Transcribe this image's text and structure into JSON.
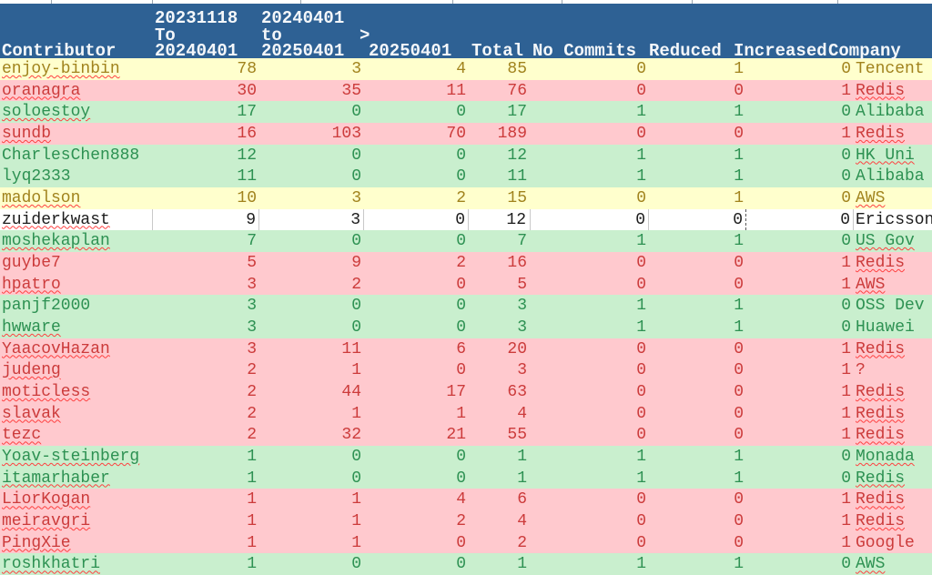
{
  "colors": {
    "header_bg": "#2e6194",
    "header_text": "#f4f7fa",
    "yellow_bg": "#ffffcd",
    "yellow_text": "#a1831d",
    "red_bg": "#ffc9ce",
    "red_text": "#cc3b3b",
    "green_bg": "#c9efce",
    "green_text": "#2d9152",
    "white_row_text": "#1b1b1b",
    "squiggle": "#ff4040"
  },
  "header": {
    "line1": {
      "c2": "20231118",
      "c3": "20240401"
    },
    "line2": {
      "c2": "To",
      "c3": "to",
      "c4": ">"
    },
    "line3": {
      "c1": "Contributor",
      "c2": "20240401",
      "c3": "20250401",
      "c4": "20250401",
      "c5": "Total",
      "c6": "No Commits",
      "c7": "Reduced",
      "c8": "Increased",
      "c9": "Company"
    }
  },
  "rows": [
    {
      "contributor": "enjoy-binbin",
      "p1": "78",
      "p2": "3",
      "p3": "4",
      "total": "85",
      "no_commits": "0",
      "reduced": "1",
      "increased": "0",
      "company": "Tencent",
      "tone": "yellow",
      "contributor_spellcheck": true,
      "company_spellcheck": false
    },
    {
      "contributor": "oranagra",
      "p1": "30",
      "p2": "35",
      "p3": "11",
      "total": "76",
      "no_commits": "0",
      "reduced": "0",
      "increased": "1",
      "company": "Redis",
      "tone": "red",
      "contributor_spellcheck": true,
      "company_spellcheck": true
    },
    {
      "contributor": "soloestoy",
      "p1": "17",
      "p2": "0",
      "p3": "0",
      "total": "17",
      "no_commits": "1",
      "reduced": "1",
      "increased": "0",
      "company": "Alibaba",
      "tone": "green",
      "contributor_spellcheck": true,
      "company_spellcheck": false
    },
    {
      "contributor": "sundb",
      "p1": "16",
      "p2": "103",
      "p3": "70",
      "total": "189",
      "no_commits": "0",
      "reduced": "0",
      "increased": "1",
      "company": "Redis",
      "tone": "red",
      "contributor_spellcheck": true,
      "company_spellcheck": true
    },
    {
      "contributor": "CharlesChen888",
      "p1": "12",
      "p2": "0",
      "p3": "0",
      "total": "12",
      "no_commits": "1",
      "reduced": "1",
      "increased": "0",
      "company": "HK Uni",
      "tone": "green",
      "contributor_spellcheck": false,
      "company_spellcheck": true
    },
    {
      "contributor": "lyq2333",
      "p1": "11",
      "p2": "0",
      "p3": "0",
      "total": "11",
      "no_commits": "1",
      "reduced": "1",
      "increased": "0",
      "company": "Alibaba",
      "tone": "green",
      "contributor_spellcheck": false,
      "company_spellcheck": false
    },
    {
      "contributor": "madolson",
      "p1": "10",
      "p2": "3",
      "p3": "2",
      "total": "15",
      "no_commits": "0",
      "reduced": "1",
      "increased": "0",
      "company": "AWS",
      "tone": "yellow",
      "contributor_spellcheck": true,
      "company_spellcheck": true
    },
    {
      "contributor": "zuiderkwast",
      "p1": "9",
      "p2": "3",
      "p3": "0",
      "total": "12",
      "no_commits": "0",
      "reduced": "0",
      "increased": "0",
      "company": "Ericsson",
      "tone": "white",
      "contributor_spellcheck": true,
      "company_spellcheck": false
    },
    {
      "contributor": "moshekaplan",
      "p1": "7",
      "p2": "0",
      "p3": "0",
      "total": "7",
      "no_commits": "1",
      "reduced": "1",
      "increased": "0",
      "company": "US Gov",
      "tone": "green",
      "contributor_spellcheck": true,
      "company_spellcheck": true
    },
    {
      "contributor": "guybe7",
      "p1": "5",
      "p2": "9",
      "p3": "2",
      "total": "16",
      "no_commits": "0",
      "reduced": "0",
      "increased": "1",
      "company": "Redis",
      "tone": "red",
      "contributor_spellcheck": false,
      "company_spellcheck": true
    },
    {
      "contributor": "hpatro",
      "p1": "3",
      "p2": "2",
      "p3": "0",
      "total": "5",
      "no_commits": "0",
      "reduced": "0",
      "increased": "1",
      "company": "AWS",
      "tone": "red",
      "contributor_spellcheck": true,
      "company_spellcheck": true
    },
    {
      "contributor": "panjf2000",
      "p1": "3",
      "p2": "0",
      "p3": "0",
      "total": "3",
      "no_commits": "1",
      "reduced": "1",
      "increased": "0",
      "company": "OSS Dev",
      "tone": "green",
      "contributor_spellcheck": false,
      "company_spellcheck": false
    },
    {
      "contributor": "hwware",
      "p1": "3",
      "p2": "0",
      "p3": "0",
      "total": "3",
      "no_commits": "1",
      "reduced": "1",
      "increased": "0",
      "company": "Huawei",
      "tone": "green",
      "contributor_spellcheck": true,
      "company_spellcheck": false
    },
    {
      "contributor": "YaacovHazan",
      "p1": "3",
      "p2": "11",
      "p3": "6",
      "total": "20",
      "no_commits": "0",
      "reduced": "0",
      "increased": "1",
      "company": "Redis",
      "tone": "red",
      "contributor_spellcheck": true,
      "company_spellcheck": true
    },
    {
      "contributor": "judeng",
      "p1": "2",
      "p2": "1",
      "p3": "0",
      "total": "3",
      "no_commits": "0",
      "reduced": "0",
      "increased": "1",
      "company": "?",
      "tone": "red",
      "contributor_spellcheck": true,
      "company_spellcheck": false
    },
    {
      "contributor": "moticless",
      "p1": "2",
      "p2": "44",
      "p3": "17",
      "total": "63",
      "no_commits": "0",
      "reduced": "0",
      "increased": "1",
      "company": "Redis",
      "tone": "red",
      "contributor_spellcheck": true,
      "company_spellcheck": true
    },
    {
      "contributor": "slavak",
      "p1": "2",
      "p2": "1",
      "p3": "1",
      "total": "4",
      "no_commits": "0",
      "reduced": "0",
      "increased": "1",
      "company": "Redis",
      "tone": "red",
      "contributor_spellcheck": true,
      "company_spellcheck": true
    },
    {
      "contributor": "tezc",
      "p1": "2",
      "p2": "32",
      "p3": "21",
      "total": "55",
      "no_commits": "0",
      "reduced": "0",
      "increased": "1",
      "company": "Redis",
      "tone": "red",
      "contributor_spellcheck": true,
      "company_spellcheck": true
    },
    {
      "contributor": "Yoav-steinberg",
      "p1": "1",
      "p2": "0",
      "p3": "0",
      "total": "1",
      "no_commits": "1",
      "reduced": "1",
      "increased": "0",
      "company": "Monada",
      "tone": "green",
      "contributor_spellcheck": true,
      "company_spellcheck": true
    },
    {
      "contributor": "itamarhaber",
      "p1": "1",
      "p2": "0",
      "p3": "0",
      "total": "1",
      "no_commits": "1",
      "reduced": "1",
      "increased": "0",
      "company": "Redis",
      "tone": "green",
      "contributor_spellcheck": true,
      "company_spellcheck": true
    },
    {
      "contributor": "LiorKogan",
      "p1": "1",
      "p2": "1",
      "p3": "4",
      "total": "6",
      "no_commits": "0",
      "reduced": "0",
      "increased": "1",
      "company": "Redis",
      "tone": "red",
      "contributor_spellcheck": true,
      "company_spellcheck": true
    },
    {
      "contributor": "meiravgri",
      "p1": "1",
      "p2": "1",
      "p3": "2",
      "total": "4",
      "no_commits": "0",
      "reduced": "0",
      "increased": "1",
      "company": "Redis",
      "tone": "red",
      "contributor_spellcheck": true,
      "company_spellcheck": true
    },
    {
      "contributor": "PingXie",
      "p1": "1",
      "p2": "1",
      "p3": "0",
      "total": "2",
      "no_commits": "0",
      "reduced": "0",
      "increased": "1",
      "company": "Google",
      "tone": "red",
      "contributor_spellcheck": true,
      "company_spellcheck": false
    },
    {
      "contributor": "roshkhatri",
      "p1": "1",
      "p2": "0",
      "p3": "0",
      "total": "1",
      "no_commits": "1",
      "reduced": "1",
      "increased": "0",
      "company": "AWS",
      "tone": "green",
      "contributor_spellcheck": true,
      "company_spellcheck": true
    }
  ]
}
